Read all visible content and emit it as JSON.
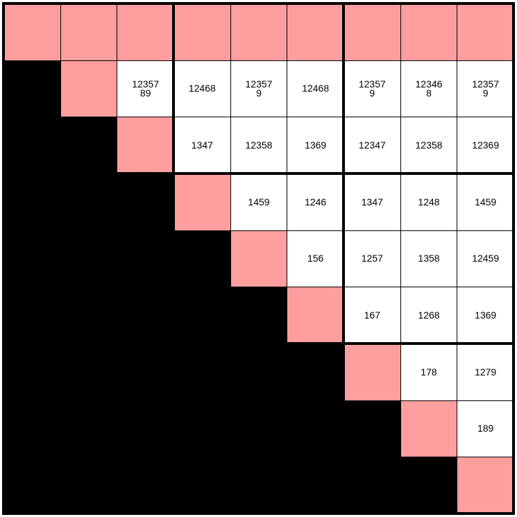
{
  "grid": {
    "rows": [
      [],
      [
        "1235789",
        "12468",
        "123579",
        "12468",
        "123579",
        "123468",
        "123579"
      ],
      [
        "1347",
        "12358",
        "1369",
        "12347",
        "12358",
        "12369"
      ],
      [
        "1459",
        "1246",
        "1347",
        "1248",
        "1459"
      ],
      [
        "156",
        "1257",
        "1358",
        "12459"
      ],
      [
        "167",
        "1268",
        "1369"
      ],
      [
        "178",
        "1279"
      ],
      [
        "189"
      ],
      []
    ]
  }
}
